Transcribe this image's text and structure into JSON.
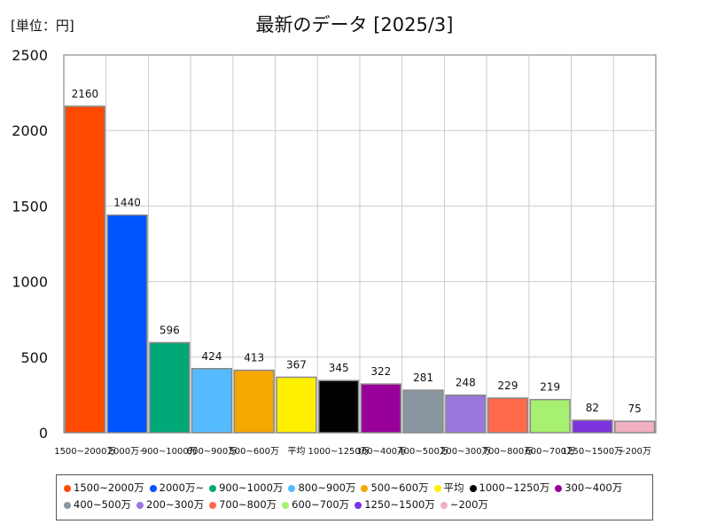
{
  "header": {
    "unit": "[単位：円]",
    "title": "最新のデータ [2025/3]"
  },
  "chart_data": {
    "type": "bar",
    "categories": [
      "1500~2000万",
      "2000万~",
      "900~1000万",
      "800~900万",
      "500~600万",
      "平均",
      "1000~1250万",
      "300~400万",
      "400~500万",
      "200~300万",
      "700~800万",
      "600~700万",
      "1250~1500万",
      "~200万"
    ],
    "values": [
      2160,
      1440,
      596,
      424,
      413,
      367,
      345,
      322,
      281,
      248,
      229,
      219,
      82,
      75
    ],
    "colors": [
      "#ff4a00",
      "#0055ff",
      "#00a878",
      "#55bbff",
      "#f5a800",
      "#fff000",
      "#000000",
      "#990099",
      "#8a96a0",
      "#9977dd",
      "#ff6a4a",
      "#a8f070",
      "#7a33dd",
      "#f0b0c0"
    ],
    "yticks": [
      0,
      500,
      1000,
      1500,
      2000,
      2500
    ],
    "ylim": [
      0,
      2500
    ],
    "grid": true,
    "legend_position": "bottom"
  }
}
